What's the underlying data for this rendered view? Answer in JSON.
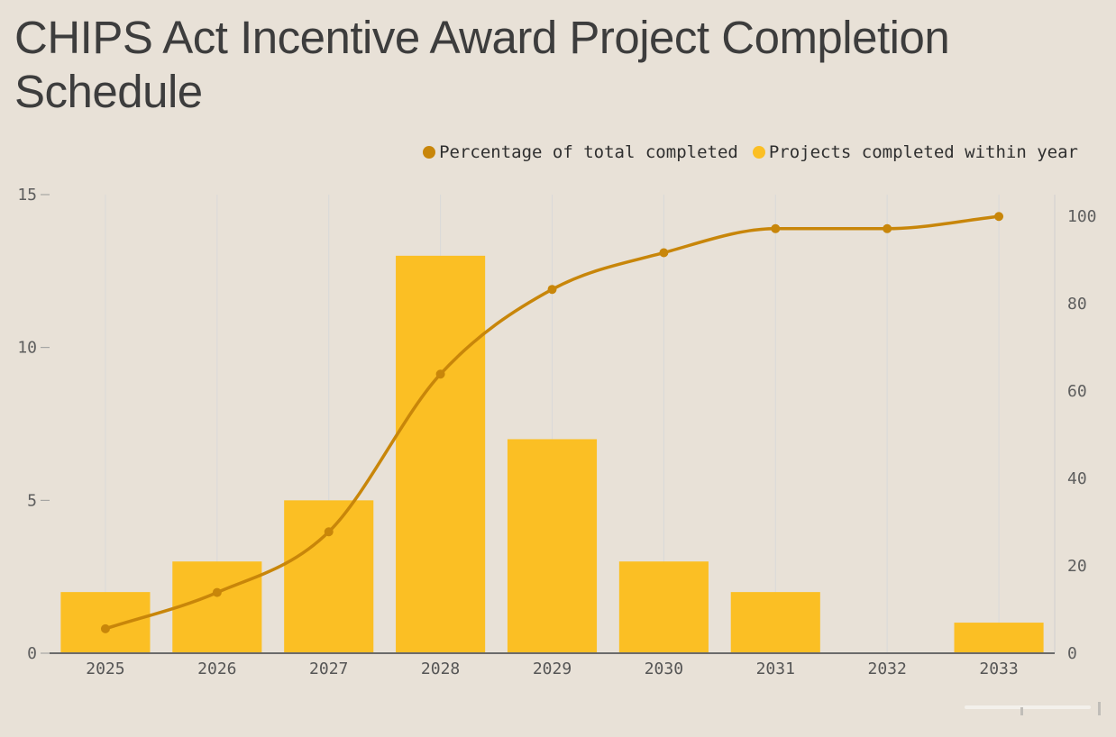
{
  "title": "CHIPS Act Incentive Award Project Completion Schedule",
  "legend": {
    "items": [
      {
        "label": "Percentage of total completed",
        "color": "#c8860a"
      },
      {
        "label": "Projects completed within year",
        "color": "#fbbf24"
      }
    ]
  },
  "colors": {
    "background": "#e8e1d7",
    "bar": "#fbbf24",
    "line": "#c8860a",
    "axis": "#6b6b6b",
    "grid": "#d9d9d9"
  },
  "chart_data": {
    "type": "bar",
    "categories": [
      "2025",
      "2026",
      "2027",
      "2028",
      "2029",
      "2030",
      "2031",
      "2032",
      "2033"
    ],
    "series": [
      {
        "name": "Projects completed within year",
        "type": "bar",
        "axis": "left",
        "values": [
          2,
          3,
          5,
          13,
          7,
          3,
          2,
          0,
          1
        ]
      },
      {
        "name": "Percentage of total completed",
        "type": "line",
        "axis": "right",
        "values": [
          5.6,
          13.9,
          27.8,
          63.9,
          83.3,
          91.7,
          97.2,
          97.2,
          100
        ]
      }
    ],
    "yaxis_left": {
      "ticks": [
        0,
        5,
        10,
        15
      ],
      "range": [
        0,
        15
      ]
    },
    "yaxis_right": {
      "ticks": [
        0,
        20,
        40,
        60,
        80,
        100
      ],
      "range": [
        0,
        105
      ]
    },
    "grid": "vertical",
    "legend_position": "top-right"
  }
}
